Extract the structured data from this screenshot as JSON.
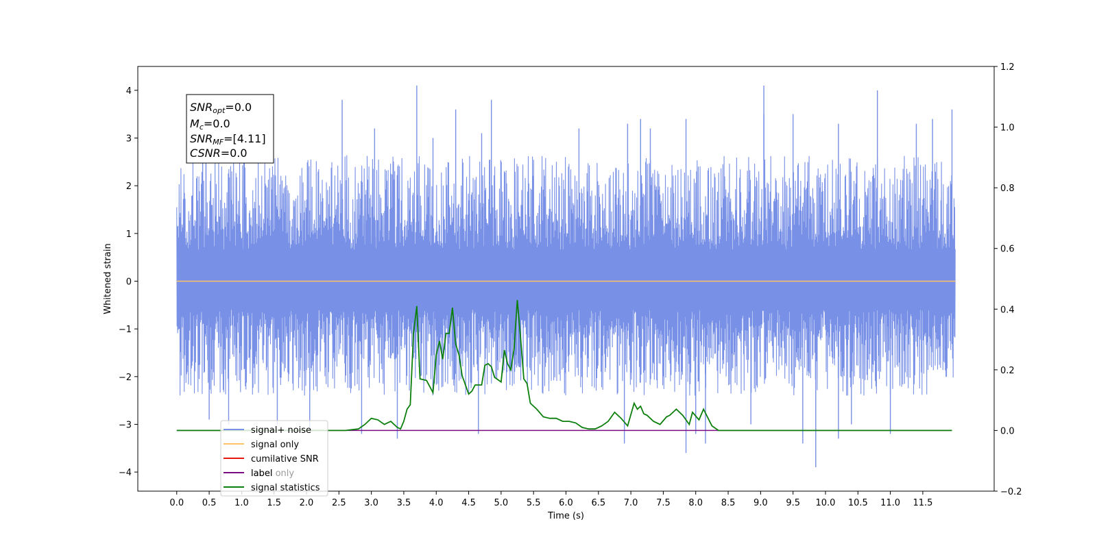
{
  "chart_data": {
    "type": "line",
    "xlabel": "Time (s)",
    "ylabel": "Whitened strain",
    "xlim": [
      -0.6,
      12.6
    ],
    "ylim": [
      -4.4,
      4.5
    ],
    "y2lim": [
      -0.2,
      1.2
    ],
    "x_ticks": [
      "0.0",
      "0.5",
      "1.0",
      "1.5",
      "2.0",
      "2.5",
      "3.0",
      "3.5",
      "4.0",
      "4.5",
      "5.0",
      "5.5",
      "6.0",
      "6.5",
      "7.0",
      "7.5",
      "8.0",
      "8.5",
      "9.0",
      "9.5",
      "10.0",
      "10.5",
      "11.0",
      "11.5"
    ],
    "y_ticks": [
      "4",
      "3",
      "2",
      "1",
      "0",
      "−1",
      "−2",
      "−3",
      "−4"
    ],
    "y2_ticks": [
      "1.2",
      "1.0",
      "0.8",
      "0.6",
      "0.4",
      "0.2",
      "0.0",
      "−0.2"
    ],
    "legend_location": "lower-left",
    "info_box": {
      "lines": [
        {
          "main": "SNR",
          "sub": "opt",
          "value": "=0.0"
        },
        {
          "main": "M",
          "sub": "c",
          "value": "=0.0"
        },
        {
          "main": "SNR",
          "sub": "MF",
          "value": "=[4.11]"
        },
        {
          "main": "CSNR",
          "sub": "",
          "value": "=0.0"
        }
      ]
    },
    "series": [
      {
        "name": "signal+ noise",
        "color": "#7890e6",
        "axis": "left",
        "x_range": [
          0.0,
          12.0
        ],
        "typical_range": [
          -2.0,
          2.2
        ],
        "spikes": [
          {
            "x": 0.4,
            "y": 3.4
          },
          {
            "x": 0.45,
            "y": 3.2
          },
          {
            "x": 2.55,
            "y": 3.8
          },
          {
            "x": 3.05,
            "y": 3.2
          },
          {
            "x": 3.95,
            "y": 3.0
          },
          {
            "x": 4.3,
            "y": 3.6
          },
          {
            "x": 4.7,
            "y": 3.1
          },
          {
            "x": 4.85,
            "y": 3.8
          },
          {
            "x": 6.2,
            "y": 3.2
          },
          {
            "x": 6.95,
            "y": 3.3
          },
          {
            "x": 7.15,
            "y": 3.4
          },
          {
            "x": 7.3,
            "y": 3.2
          },
          {
            "x": 7.85,
            "y": 3.4
          },
          {
            "x": 9.05,
            "y": 3.5
          },
          {
            "x": 9.5,
            "y": 3.5
          },
          {
            "x": 10.2,
            "y": 3.3
          },
          {
            "x": 10.8,
            "y": 4.0
          },
          {
            "x": 11.4,
            "y": 3.3
          },
          {
            "x": 11.65,
            "y": 3.4
          },
          {
            "x": 11.95,
            "y": 3.6
          },
          {
            "x": 3.7,
            "y": 4.1
          },
          {
            "x": 9.05,
            "y": 4.1
          },
          {
            "x": 0.5,
            "y": -2.9
          },
          {
            "x": 0.8,
            "y": -3.0
          },
          {
            "x": 1.55,
            "y": -3.0
          },
          {
            "x": 2.05,
            "y": -3.1
          },
          {
            "x": 2.85,
            "y": -3.2
          },
          {
            "x": 3.4,
            "y": -3.3
          },
          {
            "x": 4.65,
            "y": -3.2
          },
          {
            "x": 6.9,
            "y": -3.4
          },
          {
            "x": 7.85,
            "y": -3.6
          },
          {
            "x": 8.0,
            "y": -3.2
          },
          {
            "x": 8.15,
            "y": -3.4
          },
          {
            "x": 8.85,
            "y": -3.0
          },
          {
            "x": 9.65,
            "y": -3.4
          },
          {
            "x": 9.85,
            "y": -3.9
          },
          {
            "x": 10.2,
            "y": -3.3
          },
          {
            "x": 10.4,
            "y": -3.0
          },
          {
            "x": 11.0,
            "y": -3.2
          }
        ]
      },
      {
        "name": "signal only",
        "color": "#ffc266",
        "axis": "left",
        "x": [
          0.0,
          12.0
        ],
        "y": [
          0.0,
          0.0
        ]
      },
      {
        "name": "cumilative SNR",
        "color": "#e8140e",
        "axis": "left",
        "x": [],
        "y": []
      },
      {
        "name": "label",
        "color": "#7a0a80",
        "axis": "right",
        "x": [
          0.0,
          11.95
        ],
        "y": [
          0.0,
          0.0
        ]
      },
      {
        "name": "label only",
        "color": "#b7b7b7",
        "axis": "right",
        "x": [],
        "y": []
      },
      {
        "name": "signal statistics",
        "color": "#0b7f0b",
        "axis": "right",
        "x": [
          0.0,
          2.6,
          2.8,
          2.9,
          3.0,
          3.1,
          3.2,
          3.3,
          3.4,
          3.45,
          3.5,
          3.55,
          3.6,
          3.65,
          3.7,
          3.75,
          3.85,
          3.95,
          4.0,
          4.05,
          4.1,
          4.15,
          4.2,
          4.25,
          4.3,
          4.35,
          4.4,
          4.5,
          4.55,
          4.6,
          4.7,
          4.75,
          4.8,
          4.85,
          4.9,
          5.0,
          5.05,
          5.1,
          5.15,
          5.2,
          5.25,
          5.3,
          5.35,
          5.4,
          5.45,
          5.55,
          5.65,
          5.75,
          5.85,
          5.95,
          6.05,
          6.15,
          6.25,
          6.35,
          6.45,
          6.55,
          6.65,
          6.75,
          6.85,
          6.95,
          7.05,
          7.1,
          7.15,
          7.2,
          7.25,
          7.35,
          7.45,
          7.55,
          7.6,
          7.7,
          7.8,
          7.9,
          7.95,
          8.05,
          8.12,
          8.25,
          8.35,
          8.5,
          11.95
        ],
        "y": [
          0.0,
          0.0,
          0.005,
          0.02,
          0.04,
          0.035,
          0.02,
          0.03,
          0.01,
          0.005,
          0.03,
          0.07,
          0.085,
          0.32,
          0.41,
          0.17,
          0.165,
          0.125,
          0.25,
          0.295,
          0.235,
          0.32,
          0.32,
          0.405,
          0.285,
          0.25,
          0.18,
          0.12,
          0.13,
          0.15,
          0.15,
          0.215,
          0.22,
          0.21,
          0.175,
          0.16,
          0.265,
          0.22,
          0.2,
          0.27,
          0.43,
          0.305,
          0.17,
          0.155,
          0.09,
          0.07,
          0.045,
          0.04,
          0.04,
          0.03,
          0.03,
          0.025,
          0.01,
          0.005,
          0.005,
          0.015,
          0.03,
          0.06,
          0.04,
          0.015,
          0.09,
          0.07,
          0.08,
          0.055,
          0.05,
          0.03,
          0.02,
          0.045,
          0.05,
          0.07,
          0.05,
          0.02,
          0.06,
          0.035,
          0.07,
          0.015,
          0.0,
          0.0,
          0.0
        ]
      }
    ]
  }
}
